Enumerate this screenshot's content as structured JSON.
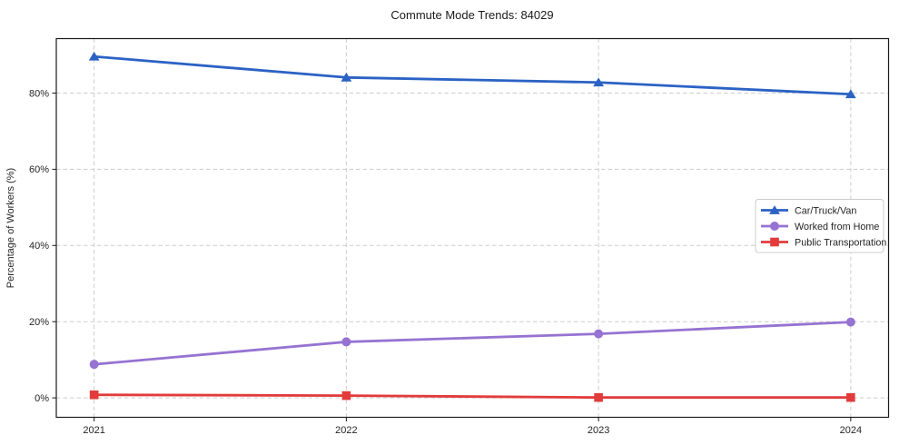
{
  "chart_data": {
    "type": "line",
    "title": "Commute Mode Trends: 84029",
    "xlabel": "",
    "ylabel": "Percentage of Workers (%)",
    "x": [
      2021,
      2022,
      2023,
      2024
    ],
    "x_tick_labels": [
      "2021",
      "2022",
      "2023",
      "2024"
    ],
    "y_ticks": [
      0,
      20,
      40,
      60,
      80
    ],
    "y_tick_labels": [
      "0%",
      "20%",
      "40%",
      "60%",
      "80%"
    ],
    "xlim": [
      2020.85,
      2024.15
    ],
    "ylim": [
      -5.1,
      94.3
    ],
    "grid": true,
    "grid_style": "dashed",
    "legend_position": "center right",
    "background_color": "#ffffff",
    "grid_color": "#cdcdcd",
    "spine_color": "#1a1a1a",
    "text_color": "#262626",
    "series": [
      {
        "name": "Car/Truck/Van",
        "color": "#2b62c4",
        "marker": "triangle",
        "values": [
          89.6,
          84.1,
          82.8,
          79.7
        ]
      },
      {
        "name": "Worked from Home",
        "color": "#9673d2",
        "marker": "circle",
        "values": [
          8.8,
          14.7,
          16.8,
          19.9
        ]
      },
      {
        "name": "Public Transportation",
        "color": "#e23b3b",
        "marker": "square",
        "values": [
          0.8,
          0.6,
          0.1,
          0.1
        ]
      }
    ]
  }
}
